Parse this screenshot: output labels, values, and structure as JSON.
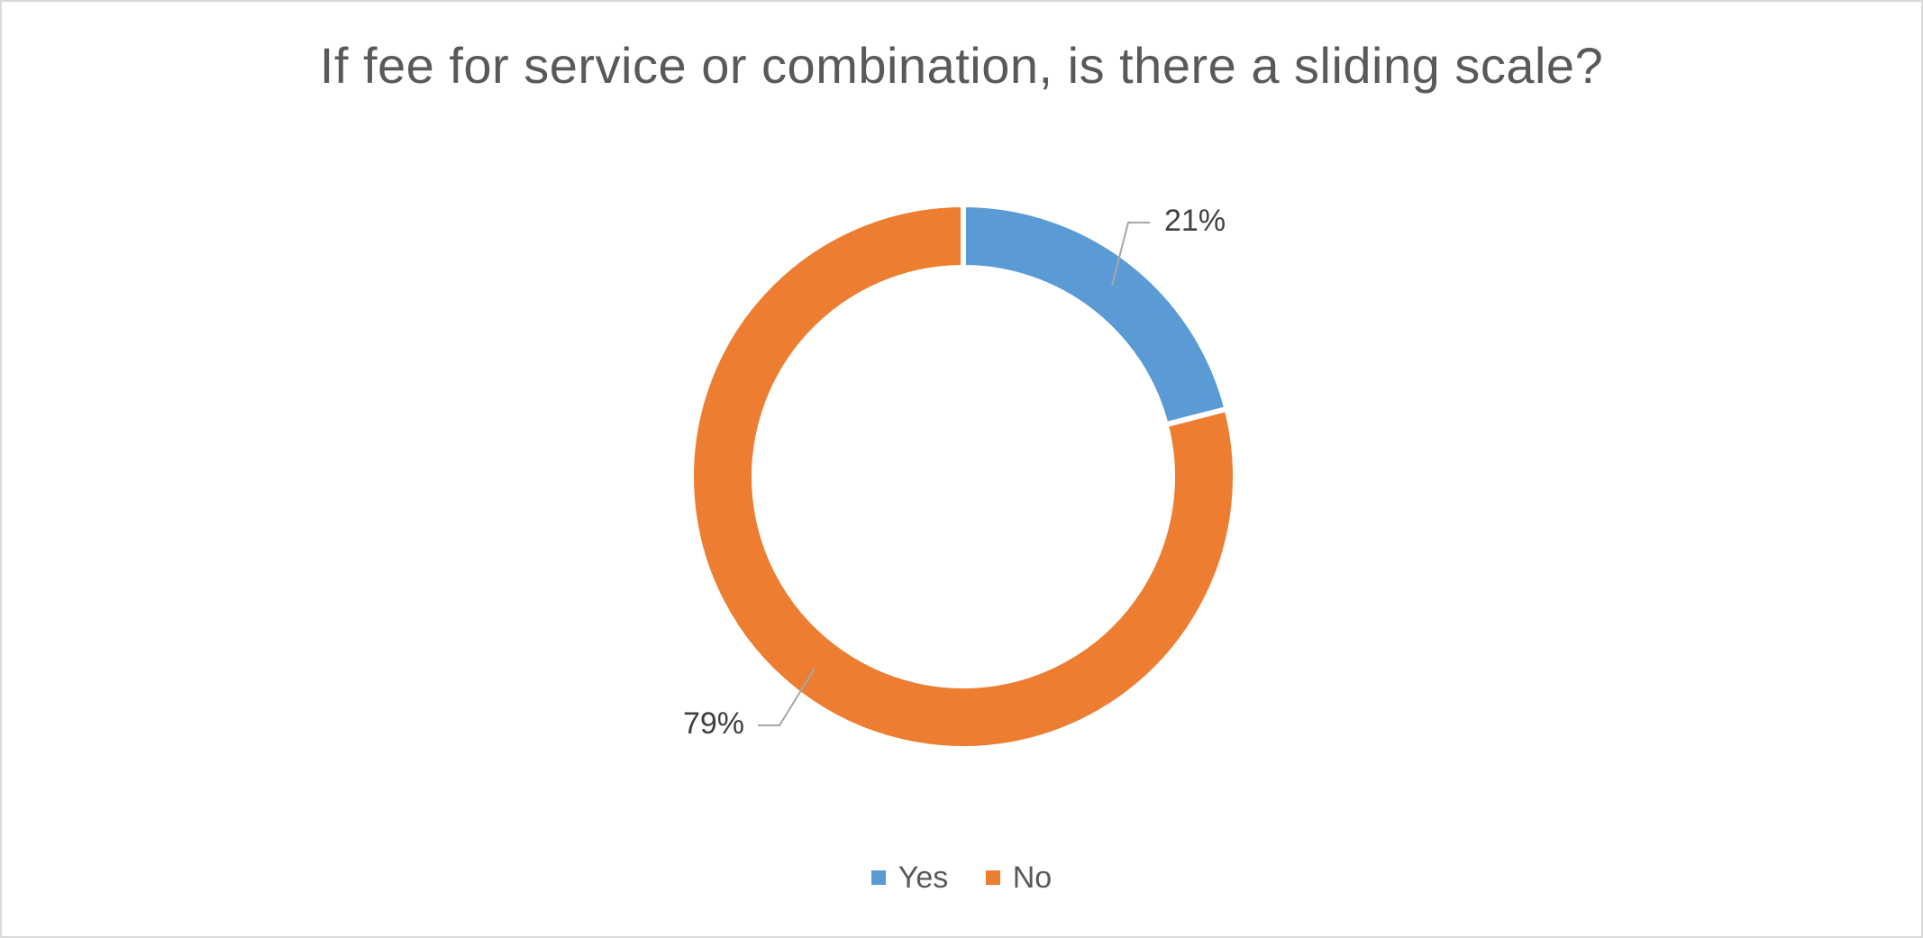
{
  "chart_data": {
    "type": "pie",
    "style": "doughnut",
    "title": "If fee for service or combination, is there a sliding scale?",
    "slices": [
      {
        "label": "Yes",
        "value": 21,
        "display": "21%",
        "color": "#5b9bd5"
      },
      {
        "label": "No",
        "value": 79,
        "display": "79%",
        "color": "#ed7d31"
      }
    ],
    "legend_position": "bottom",
    "data_labels": "outside with leader lines"
  }
}
